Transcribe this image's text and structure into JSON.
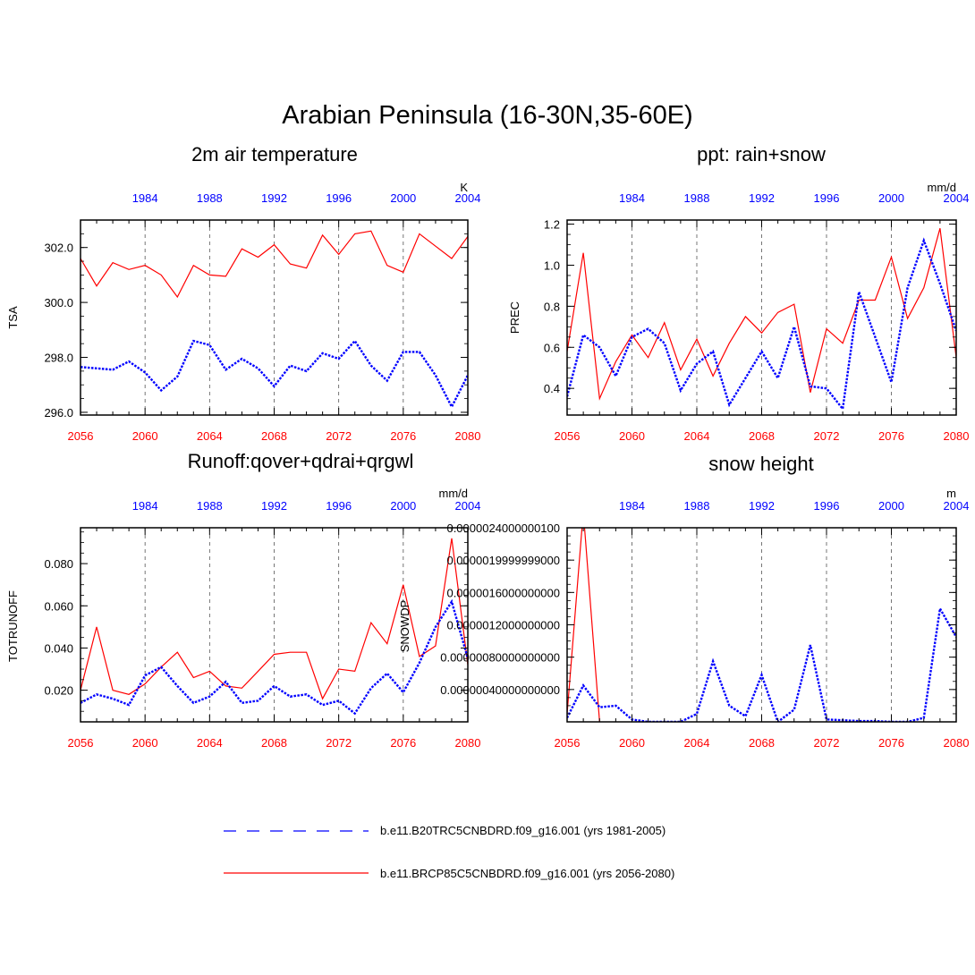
{
  "figure": {
    "title": "Arabian Peninsula (16-30N,35-60E)"
  },
  "colors": {
    "future": "#ff0000",
    "historical": "#0000ff",
    "axis": "#000000"
  },
  "legend": {
    "entries": [
      {
        "label": "b.e11.B20TRC5CNBDRD.f09_g16.001 (yrs 1981-2005)",
        "color": "#0000ff",
        "style": "dashed"
      },
      {
        "label": "b.e11.BRCP85C5CNBDRD.f09_g16.001 (yrs 2056-2080)",
        "color": "#ff0000",
        "style": "solid"
      }
    ]
  },
  "chart_data": [
    {
      "type": "line",
      "title": "2m air temperature",
      "ylabel": "TSA",
      "units": "K",
      "ylim": [
        295.9,
        303.0
      ],
      "yticks": [
        296.0,
        298.0,
        300.0,
        302.0
      ],
      "ytick_labels": [
        "296.0",
        "298.0",
        "300.0",
        "302.0"
      ],
      "x_bottom": [
        2056,
        2057,
        2058,
        2059,
        2060,
        2061,
        2062,
        2063,
        2064,
        2065,
        2066,
        2067,
        2068,
        2069,
        2070,
        2071,
        2072,
        2073,
        2074,
        2075,
        2076,
        2077,
        2078,
        2079,
        2080
      ],
      "x_top_ticks": [
        1984,
        1988,
        1992,
        1996,
        2000,
        2004
      ],
      "x_bottom_ticks": [
        2056,
        2060,
        2064,
        2068,
        2072,
        2076,
        2080
      ],
      "grid": "vertical dashed",
      "series": [
        {
          "name": "b.e11.BRCP85C5CNBDRD.f09_g16.001 (yrs 2056-2080)",
          "color": "#ff0000",
          "style": "solid",
          "values": [
            301.6,
            300.6,
            301.45,
            301.2,
            301.35,
            301.0,
            300.2,
            301.35,
            301.0,
            300.95,
            301.95,
            301.65,
            302.1,
            301.4,
            301.25,
            302.45,
            301.75,
            302.5,
            302.6,
            301.35,
            301.1,
            302.5,
            302.05,
            301.6,
            302.4
          ]
        },
        {
          "name": "b.e11.B20TRC5CNBDRD.f09_g16.001 (yrs 1981-2005)",
          "color": "#0000ff",
          "style": "dashed",
          "values": [
            297.65,
            297.6,
            297.55,
            297.85,
            297.45,
            296.8,
            297.3,
            298.6,
            298.45,
            297.55,
            297.95,
            297.6,
            296.95,
            297.7,
            297.5,
            298.15,
            297.95,
            298.6,
            297.7,
            297.15,
            298.2,
            298.2,
            297.35,
            296.2,
            297.35
          ]
        }
      ]
    },
    {
      "type": "line",
      "title": "ppt: rain+snow",
      "ylabel": "PREC",
      "units": "mm/d",
      "ylim": [
        0.27,
        1.22
      ],
      "yticks": [
        0.4,
        0.6,
        0.8,
        1.0,
        1.2
      ],
      "ytick_labels": [
        "0.4",
        "0.6",
        "0.8",
        "1.0",
        "1.2"
      ],
      "x_bottom": [
        2056,
        2057,
        2058,
        2059,
        2060,
        2061,
        2062,
        2063,
        2064,
        2065,
        2066,
        2067,
        2068,
        2069,
        2070,
        2071,
        2072,
        2073,
        2074,
        2075,
        2076,
        2077,
        2078,
        2079,
        2080
      ],
      "x_top_ticks": [
        1984,
        1988,
        1992,
        1996,
        2000,
        2004
      ],
      "x_bottom_ticks": [
        2056,
        2060,
        2064,
        2068,
        2072,
        2076,
        2080
      ],
      "grid": "vertical dashed",
      "series": [
        {
          "name": "b.e11.BRCP85C5CNBDRD.f09_g16.001 (yrs 2056-2080)",
          "color": "#ff0000",
          "style": "solid",
          "values": [
            0.58,
            1.06,
            0.35,
            0.53,
            0.66,
            0.55,
            0.72,
            0.49,
            0.64,
            0.46,
            0.62,
            0.75,
            0.67,
            0.77,
            0.81,
            0.38,
            0.69,
            0.62,
            0.83,
            0.83,
            1.04,
            0.74,
            0.89,
            1.18,
            0.55
          ]
        },
        {
          "name": "b.e11.B20TRC5CNBDRD.f09_g16.001 (yrs 1981-2005)",
          "color": "#0000ff",
          "style": "dashed",
          "values": [
            0.36,
            0.66,
            0.6,
            0.46,
            0.65,
            0.69,
            0.62,
            0.39,
            0.52,
            0.58,
            0.32,
            0.45,
            0.58,
            0.45,
            0.7,
            0.41,
            0.4,
            0.3,
            0.87,
            0.65,
            0.43,
            0.89,
            1.12,
            0.91,
            0.68
          ]
        }
      ]
    },
    {
      "type": "line",
      "title": "Runoff:qover+qdrai+qrgwl",
      "ylabel": "TOTRUNOFF",
      "units": "mm/d",
      "ylim": [
        0.005,
        0.097
      ],
      "yticks": [
        0.02,
        0.04,
        0.06,
        0.08
      ],
      "ytick_labels": [
        "0.020",
        "0.040",
        "0.060",
        "0.080"
      ],
      "x_bottom": [
        2056,
        2057,
        2058,
        2059,
        2060,
        2061,
        2062,
        2063,
        2064,
        2065,
        2066,
        2067,
        2068,
        2069,
        2070,
        2071,
        2072,
        2073,
        2074,
        2075,
        2076,
        2077,
        2078,
        2079,
        2080
      ],
      "x_top_ticks": [
        1984,
        1988,
        1992,
        1996,
        2000,
        2004
      ],
      "x_bottom_ticks": [
        2056,
        2060,
        2064,
        2068,
        2072,
        2076,
        2080
      ],
      "grid": "vertical dashed",
      "series": [
        {
          "name": "b.e11.BRCP85C5CNBDRD.f09_g16.001 (yrs 2056-2080)",
          "color": "#ff0000",
          "style": "solid",
          "values": [
            0.02,
            0.05,
            0.02,
            0.018,
            0.023,
            0.031,
            0.038,
            0.026,
            0.029,
            0.022,
            0.021,
            0.029,
            0.037,
            0.038,
            0.038,
            0.016,
            0.03,
            0.029,
            0.052,
            0.042,
            0.07,
            0.036,
            0.041,
            0.092,
            0.032
          ]
        },
        {
          "name": "b.e11.B20TRC5CNBDRD.f09_g16.001 (yrs 1981-2005)",
          "color": "#0000ff",
          "style": "dashed",
          "values": [
            0.014,
            0.018,
            0.016,
            0.013,
            0.027,
            0.031,
            0.022,
            0.014,
            0.017,
            0.024,
            0.014,
            0.015,
            0.022,
            0.017,
            0.018,
            0.013,
            0.015,
            0.009,
            0.021,
            0.028,
            0.019,
            0.033,
            0.05,
            0.062,
            0.035
          ]
        }
      ]
    },
    {
      "type": "line",
      "title": "snow height",
      "ylabel": "SNOWDP",
      "units": "m",
      "ylim": [
        0.0,
        2.4e-06
      ],
      "yticks": [
        4e-07,
        8e-07,
        1.2e-06,
        1.6e-06,
        2e-06,
        2.4e-06
      ],
      "ytick_labels": [
        "0.00000040000000000",
        "0.00000080000000000",
        "0.0000012000000000",
        "0.0000016000000000",
        "0.0000019999999000",
        "0.0000024000000100"
      ],
      "x_bottom": [
        2056,
        2057,
        2058,
        2059,
        2060,
        2061,
        2062,
        2063,
        2064,
        2065,
        2066,
        2067,
        2068,
        2069,
        2070,
        2071,
        2072,
        2073,
        2074,
        2075,
        2076,
        2077,
        2078,
        2079,
        2080
      ],
      "x_top_ticks": [
        1984,
        1988,
        1992,
        1996,
        2000,
        2004
      ],
      "x_bottom_ticks": [
        2056,
        2060,
        2064,
        2068,
        2072,
        2076,
        2080
      ],
      "grid": "vertical dashed",
      "series": [
        {
          "name": "b.e11.BRCP85C5CNBDRD.f09_g16.001 (yrs 2056-2080)",
          "color": "#ff0000",
          "style": "solid",
          "values": [
            1e-07,
            2.6e-06,
            0.0,
            null,
            null,
            null,
            null,
            null,
            0.0,
            null,
            null,
            null,
            null,
            null,
            null,
            null,
            null,
            null,
            null,
            null,
            null,
            null,
            null,
            null,
            null
          ]
        },
        {
          "name": "b.e11.B20TRC5CNBDRD.f09_g16.001 (yrs 1981-2005)",
          "color": "#0000ff",
          "style": "dashed",
          "values": [
            5e-08,
            4.5e-07,
            1.8e-07,
            2e-07,
            3e-08,
            0.0,
            0.0,
            0.0,
            1e-07,
            7.5e-07,
            2e-07,
            7e-08,
            5.8e-07,
            0.0,
            1.5e-07,
            9.5e-07,
            3e-08,
            2e-08,
            1e-08,
            1e-08,
            0.0,
            0.0,
            5e-08,
            1.4e-06,
            1.05e-06
          ]
        }
      ]
    }
  ]
}
